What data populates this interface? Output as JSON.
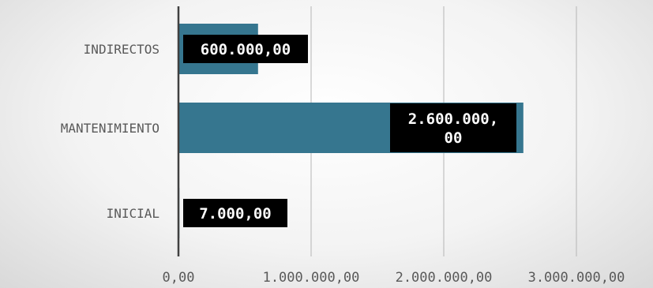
{
  "chart_data": {
    "type": "bar",
    "orientation": "horizontal",
    "categories": [
      "INDIRECTOS",
      "MANTENIMIENTO",
      "INICIAL"
    ],
    "values": [
      600000,
      2600000,
      7000
    ],
    "data_labels": [
      "600.000,00",
      "2.600.000,\n00",
      "7.000,00"
    ],
    "x_ticks": [
      {
        "value": 0,
        "label": "0,00"
      },
      {
        "value": 1000000,
        "label": "1.000.000,00"
      },
      {
        "value": 2000000,
        "label": "2.000.000,00"
      },
      {
        "value": 3000000,
        "label": "3.000.000,00"
      }
    ],
    "xlim": [
      0,
      3000000
    ],
    "grid": "vertical",
    "legend": "none",
    "bar_color": "#36768f",
    "label_bg_color": "#000000",
    "label_text_color": "#ffffff",
    "title": "",
    "xlabel": "",
    "ylabel": ""
  }
}
